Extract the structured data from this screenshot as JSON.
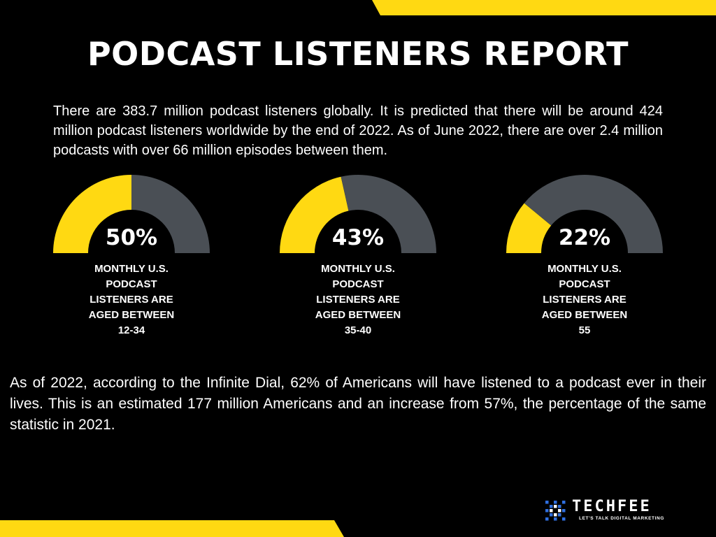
{
  "title": "PODCAST LISTENERS REPORT",
  "intro": "There are 383.7 million podcast listeners globally. It is predicted that there will be around 424 million podcast listeners worldwide by the end of 2022. As of June 2022, there are over 2.4 million podcasts with over 66 million episodes between them.",
  "outro": "As of 2022, according to the Infinite Dial, 62% of Americans will have listened to a podcast ever in their lives. This is an estimated 177 million Americans and an increase from 57%, the percentage of the same statistic in 2021.",
  "colors": {
    "accent": "#FFD912",
    "remainder": "#4A4F55",
    "background": "#000000",
    "logo_blue": "#2F6FE0"
  },
  "chart_data": [
    {
      "type": "gauge",
      "value": 50,
      "value_label": "50%",
      "label_lines": [
        "MONTHLY U.S.",
        "PODCAST",
        "LISTENERS ARE",
        "AGED BETWEEN",
        "12-34"
      ]
    },
    {
      "type": "gauge",
      "value": 43,
      "value_label": "43%",
      "label_lines": [
        "MONTHLY U.S.",
        "PODCAST",
        "LISTENERS ARE",
        "AGED BETWEEN",
        "35-40"
      ]
    },
    {
      "type": "gauge",
      "value": 22,
      "value_label": "22%",
      "label_lines": [
        "MONTHLY U.S.",
        "PODCAST",
        "LISTENERS ARE",
        "AGED BETWEEN",
        "55"
      ]
    }
  ],
  "logo": {
    "name": "TECHFEE",
    "tagline": "LET'S TALK DIGITAL MARKETING",
    "icon": "pixel-grid-logo-icon"
  }
}
